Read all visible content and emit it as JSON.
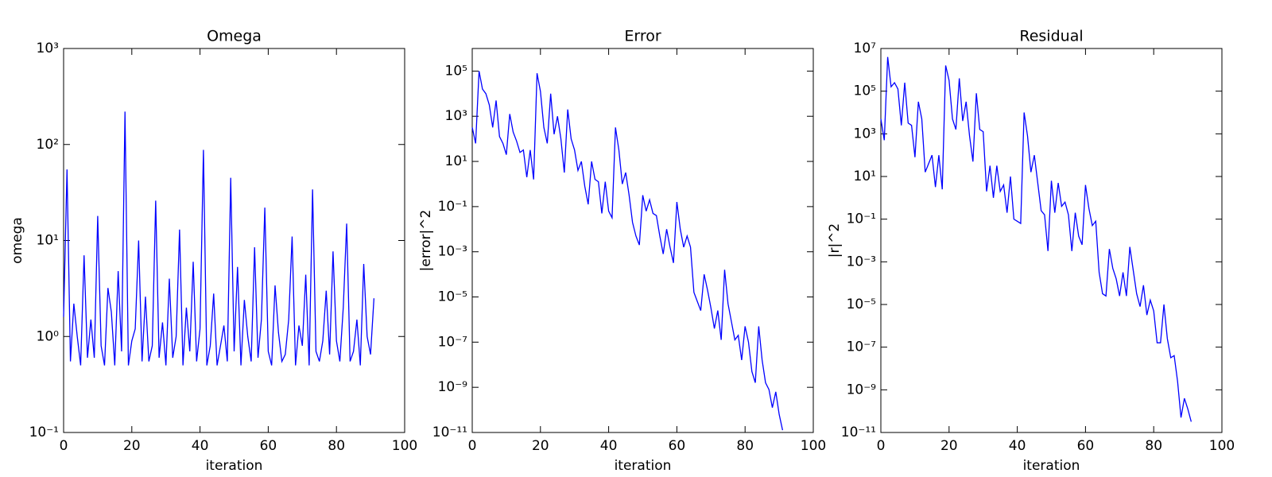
{
  "chart_data": [
    {
      "type": "line",
      "title": "Omega",
      "xlabel": "iteration",
      "ylabel": "omega",
      "yscale": "log",
      "color": "#0000ff",
      "x": [
        0,
        1,
        2,
        3,
        4,
        5,
        6,
        7,
        8,
        9,
        10,
        11,
        12,
        13,
        14,
        15,
        16,
        17,
        18,
        19,
        20,
        21,
        22,
        23,
        24,
        25,
        26,
        27,
        28,
        29,
        30,
        31,
        32,
        33,
        34,
        35,
        36,
        37,
        38,
        39,
        40,
        41,
        42,
        43,
        44,
        45,
        46,
        47,
        48,
        49,
        50,
        51,
        52,
        53,
        54,
        55,
        56,
        57,
        58,
        59,
        60,
        61,
        62,
        63,
        64,
        65,
        66,
        67,
        68,
        69,
        70,
        71,
        72,
        73,
        74,
        75,
        76,
        77,
        78,
        79,
        80,
        81,
        82,
        83,
        84,
        85,
        86,
        87,
        88,
        89,
        90,
        91
      ],
      "values": [
        1.6,
        55,
        0.55,
        2.2,
        1.0,
        0.5,
        7,
        0.6,
        1.5,
        0.6,
        18,
        0.8,
        0.5,
        3.2,
        1.8,
        0.5,
        4.8,
        0.7,
        220,
        0.5,
        0.9,
        1.2,
        10,
        0.55,
        2.6,
        0.55,
        0.8,
        26,
        0.6,
        1.4,
        0.5,
        4,
        0.6,
        1,
        13,
        0.5,
        2,
        0.7,
        6,
        0.55,
        1.2,
        88,
        0.5,
        0.8,
        2.8,
        0.5,
        0.8,
        1.3,
        0.55,
        45,
        0.7,
        5.3,
        0.5,
        2.4,
        1,
        0.55,
        8.5,
        0.6,
        1.5,
        22,
        0.7,
        0.5,
        3.4,
        1.1,
        0.55,
        0.65,
        1.5,
        11,
        0.5,
        1.3,
        0.8,
        4.4,
        0.5,
        34,
        0.7,
        0.55,
        0.9,
        3,
        0.65,
        7.7,
        0.9,
        0.55,
        2,
        15,
        0.55,
        0.7,
        1.5,
        0.5,
        5.7,
        1,
        0.65,
        2.5
      ],
      "xlim": [
        0,
        100
      ],
      "xticks": [
        0,
        20,
        40,
        60,
        80,
        100
      ],
      "ylim": [
        0.1,
        1000
      ],
      "yticks": [
        {
          "value": 0.1,
          "label": "10⁻¹"
        },
        {
          "value": 1,
          "label": "10⁰"
        },
        {
          "value": 10,
          "label": "10¹"
        },
        {
          "value": 100,
          "label": "10²"
        },
        {
          "value": 1000,
          "label": "10³"
        }
      ]
    },
    {
      "type": "line",
      "title": "Error",
      "xlabel": "iteration",
      "ylabel": "|error|^2",
      "yscale": "log",
      "color": "#0000ff",
      "x": [
        0,
        1,
        2,
        3,
        4,
        5,
        6,
        7,
        8,
        9,
        10,
        11,
        12,
        13,
        14,
        15,
        16,
        17,
        18,
        19,
        20,
        21,
        22,
        23,
        24,
        25,
        26,
        27,
        28,
        29,
        30,
        31,
        32,
        33,
        34,
        35,
        36,
        37,
        38,
        39,
        40,
        41,
        42,
        43,
        44,
        45,
        46,
        47,
        48,
        49,
        50,
        51,
        52,
        53,
        54,
        55,
        56,
        57,
        58,
        59,
        60,
        61,
        62,
        63,
        64,
        65,
        66,
        67,
        68,
        69,
        70,
        71,
        72,
        73,
        74,
        75,
        76,
        77,
        78,
        79,
        80,
        81,
        82,
        83,
        84,
        85,
        86,
        87,
        88,
        89,
        90,
        91
      ],
      "values": [
        320.0,
        63.0,
        100000.0,
        16000.0,
        10000.0,
        3200.0,
        320.0,
        5000.0,
        126.0,
        63.0,
        20.0,
        1260.0,
        200.0,
        80.0,
        25.0,
        32.0,
        2,
        32.0,
        1.6,
        80000.0,
        12600.0,
        320.0,
        63.0,
        10000.0,
        160.0,
        1000.0,
        100.0,
        3.2,
        2000.0,
        100.0,
        32.0,
        4,
        10.0,
        0.8,
        0.126,
        10.0,
        1.6,
        1.26,
        0.05,
        1.26,
        0.063,
        0.032,
        320.0,
        32.0,
        1,
        3.2,
        0.32,
        0.02,
        0.005,
        0.002,
        0.32,
        0.063,
        0.2,
        0.05,
        0.04,
        0.005,
        0.0008,
        0.01,
        0.0016,
        0.00032,
        0.16,
        0.01,
        0.0016,
        0.005,
        0.0016,
        1.6e-05,
        6.3e-06,
        2.5e-06,
        0.0001,
        2e-05,
        3.2e-06,
        4e-07,
        2.5e-06,
        1.26e-07,
        0.00016,
        5e-06,
        8e-07,
        1.26e-07,
        2e-07,
        1.6e-08,
        5e-07,
        1e-07,
        5e-09,
        1.6e-09,
        5e-07,
        1.6e-08,
        1.6e-09,
        8e-10,
        1.26e-10,
        6.3e-10,
        6.3e-11,
        1.26e-11
      ],
      "xlim": [
        0,
        100
      ],
      "xticks": [
        0,
        20,
        40,
        60,
        80,
        100
      ],
      "ylim": [
        1e-11,
        1000000.0
      ],
      "yticks": [
        {
          "value": 1e-11,
          "label": "10⁻¹¹"
        },
        {
          "value": 1e-09,
          "label": "10⁻⁹"
        },
        {
          "value": 1e-07,
          "label": "10⁻⁷"
        },
        {
          "value": 1e-05,
          "label": "10⁻⁵"
        },
        {
          "value": 0.001,
          "label": "10⁻³"
        },
        {
          "value": 0.1,
          "label": "10⁻¹"
        },
        {
          "value": 10,
          "label": "10¹"
        },
        {
          "value": 1000,
          "label": "10³"
        },
        {
          "value": 100000,
          "label": "10⁵"
        }
      ]
    },
    {
      "type": "line",
      "title": "Residual",
      "xlabel": "iteration",
      "ylabel": "|r|^2",
      "yscale": "log",
      "color": "#0000ff",
      "x": [
        0,
        1,
        2,
        3,
        4,
        5,
        6,
        7,
        8,
        9,
        10,
        11,
        12,
        13,
        14,
        15,
        16,
        17,
        18,
        19,
        20,
        21,
        22,
        23,
        24,
        25,
        26,
        27,
        28,
        29,
        30,
        31,
        32,
        33,
        34,
        35,
        36,
        37,
        38,
        39,
        40,
        41,
        42,
        43,
        44,
        45,
        46,
        47,
        48,
        49,
        50,
        51,
        52,
        53,
        54,
        55,
        56,
        57,
        58,
        59,
        60,
        61,
        62,
        63,
        64,
        65,
        66,
        67,
        68,
        69,
        70,
        71,
        72,
        73,
        74,
        75,
        76,
        77,
        78,
        79,
        80,
        81,
        82,
        83,
        84,
        85,
        86,
        87,
        88,
        89,
        90,
        91
      ],
      "values": [
        5000.0,
        500.0,
        4000000.0,
        160000.0,
        250000.0,
        126000.0,
        2500.0,
        250000.0,
        3200.0,
        2500.0,
        80.0,
        32000.0,
        5000.0,
        16.0,
        40.0,
        100.0,
        3.2,
        100.0,
        2.5,
        1600000.0,
        320000.0,
        5000.0,
        1600.0,
        400000.0,
        4000.0,
        32000.0,
        800.0,
        50.0,
        80000.0,
        1600.0,
        1260.0,
        2,
        32.0,
        1,
        32.0,
        2,
        4,
        0.2,
        10.0,
        0.1,
        0.08,
        0.063,
        10000.0,
        800.0,
        16.0,
        100.0,
        5,
        0.25,
        0.16,
        0.0032,
        6.3,
        0.2,
        5,
        0.4,
        0.63,
        0.16,
        0.0032,
        0.2,
        0.016,
        0.0063,
        4,
        0.32,
        0.05,
        0.08,
        0.00032,
        3.2e-05,
        2.5e-05,
        0.004,
        0.0005,
        0.00016,
        2.5e-05,
        0.00032,
        2.5e-05,
        0.005,
        0.0004,
        3.2e-05,
        8e-06,
        8e-05,
        3.2e-06,
        1.6e-05,
        5e-06,
        1.6e-07,
        1.6e-07,
        1e-05,
        2.5e-07,
        3.2e-08,
        4e-08,
        2.5e-09,
        5e-11,
        4e-10,
        1.26e-10,
        3.2e-11
      ],
      "xlim": [
        0,
        100
      ],
      "xticks": [
        0,
        20,
        40,
        60,
        80,
        100
      ],
      "ylim": [
        1e-11,
        10000000.0
      ],
      "yticks": [
        {
          "value": 1e-11,
          "label": "10⁻¹¹"
        },
        {
          "value": 1e-09,
          "label": "10⁻⁹"
        },
        {
          "value": 1e-07,
          "label": "10⁻⁷"
        },
        {
          "value": 1e-05,
          "label": "10⁻⁵"
        },
        {
          "value": 0.001,
          "label": "10⁻³"
        },
        {
          "value": 0.1,
          "label": "10⁻¹"
        },
        {
          "value": 10,
          "label": "10¹"
        },
        {
          "value": 1000,
          "label": "10³"
        },
        {
          "value": 100000,
          "label": "10⁵"
        },
        {
          "value": 10000000,
          "label": "10⁷"
        }
      ]
    }
  ]
}
